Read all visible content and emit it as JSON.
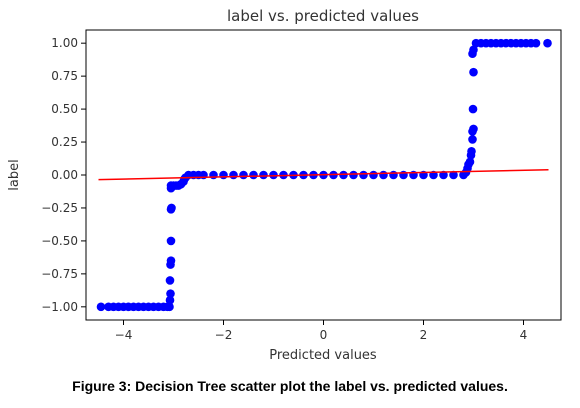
{
  "caption": "Figure 3: Decision Tree scatter plot the label vs. predicted values.",
  "chart_data": {
    "type": "scatter",
    "title": "label vs. predicted values",
    "xlabel": "Predicted values",
    "ylabel": "label",
    "xlim": [
      -4.75,
      4.75
    ],
    "ylim": [
      -1.1,
      1.1
    ],
    "xticks": [
      -4,
      -2,
      0,
      2,
      4
    ],
    "xtick_labels": [
      "−4",
      "−2",
      "0",
      "2",
      "4"
    ],
    "yticks": [
      1.0,
      0.75,
      0.5,
      0.25,
      0.0,
      -0.25,
      -0.5,
      -0.75,
      -1.0
    ],
    "ytick_labels": [
      "1.00",
      "0.75",
      "0.50",
      "0.25",
      "0.00",
      "−0.25",
      "−0.50",
      "−0.75",
      "−1.00"
    ],
    "grid": false,
    "colors": {
      "points": "#0000ff",
      "fit_line": "#ff0000"
    },
    "series": [
      {
        "points": [
          [
            -4.45,
            -1.0
          ],
          [
            -4.3,
            -1.0
          ],
          [
            -4.2,
            -1.0
          ],
          [
            -4.1,
            -1.0
          ],
          [
            -4.0,
            -1.0
          ],
          [
            -3.9,
            -1.0
          ],
          [
            -3.8,
            -1.0
          ],
          [
            -3.7,
            -1.0
          ],
          [
            -3.6,
            -1.0
          ],
          [
            -3.5,
            -1.0
          ],
          [
            -3.4,
            -1.0
          ],
          [
            -3.3,
            -1.0
          ],
          [
            -3.2,
            -1.0
          ],
          [
            -3.12,
            -1.0
          ],
          [
            -3.08,
            -1.0
          ],
          [
            -3.07,
            -0.95
          ],
          [
            -3.06,
            -0.9
          ],
          [
            -3.07,
            -0.8
          ],
          [
            -3.06,
            -0.68
          ],
          [
            -3.05,
            -0.65
          ],
          [
            -3.05,
            -0.5
          ],
          [
            -3.05,
            -0.26
          ],
          [
            -3.04,
            -0.25
          ],
          [
            -3.05,
            -0.1
          ],
          [
            -3.05,
            -0.08
          ],
          [
            -3.0,
            -0.08
          ],
          [
            -2.95,
            -0.08
          ],
          [
            -2.9,
            -0.08
          ],
          [
            -2.85,
            -0.07
          ],
          [
            -2.8,
            -0.05
          ],
          [
            -2.78,
            -0.03
          ],
          [
            -2.76,
            -0.02
          ],
          [
            -2.7,
            0.0
          ],
          [
            -2.6,
            0.0
          ],
          [
            -2.5,
            0.0
          ],
          [
            -2.4,
            0.0
          ],
          [
            -2.2,
            0.0
          ],
          [
            -2.0,
            0.0
          ],
          [
            -1.8,
            0.0
          ],
          [
            -1.6,
            0.0
          ],
          [
            -1.4,
            0.0
          ],
          [
            -1.2,
            0.0
          ],
          [
            -1.0,
            0.0
          ],
          [
            -0.8,
            0.0
          ],
          [
            -0.6,
            0.0
          ],
          [
            -0.4,
            0.0
          ],
          [
            -0.2,
            0.0
          ],
          [
            0.0,
            0.0
          ],
          [
            0.2,
            0.0
          ],
          [
            0.4,
            0.0
          ],
          [
            0.6,
            0.0
          ],
          [
            0.8,
            0.0
          ],
          [
            1.0,
            0.0
          ],
          [
            1.2,
            0.0
          ],
          [
            1.4,
            0.0
          ],
          [
            1.6,
            0.0
          ],
          [
            1.8,
            0.0
          ],
          [
            2.0,
            0.0
          ],
          [
            2.2,
            0.0
          ],
          [
            2.4,
            0.0
          ],
          [
            2.6,
            0.0
          ],
          [
            2.8,
            0.0
          ],
          [
            2.85,
            0.02
          ],
          [
            2.88,
            0.05
          ],
          [
            2.9,
            0.08
          ],
          [
            2.93,
            0.1
          ],
          [
            2.95,
            0.15
          ],
          [
            2.96,
            0.18
          ],
          [
            2.98,
            0.27
          ],
          [
            2.98,
            0.33
          ],
          [
            3.0,
            0.35
          ],
          [
            2.99,
            0.5
          ],
          [
            3.0,
            0.78
          ],
          [
            2.98,
            0.92
          ],
          [
            3.0,
            0.95
          ],
          [
            3.05,
            1.0
          ],
          [
            3.15,
            1.0
          ],
          [
            3.25,
            1.0
          ],
          [
            3.35,
            1.0
          ],
          [
            3.45,
            1.0
          ],
          [
            3.55,
            1.0
          ],
          [
            3.65,
            1.0
          ],
          [
            3.75,
            1.0
          ],
          [
            3.85,
            1.0
          ],
          [
            3.95,
            1.0
          ],
          [
            4.05,
            1.0
          ],
          [
            4.15,
            1.0
          ],
          [
            4.25,
            1.0
          ],
          [
            4.48,
            1.0
          ]
        ]
      }
    ],
    "fit_line": [
      [
        -4.5,
        -0.035
      ],
      [
        4.5,
        0.04
      ]
    ]
  }
}
